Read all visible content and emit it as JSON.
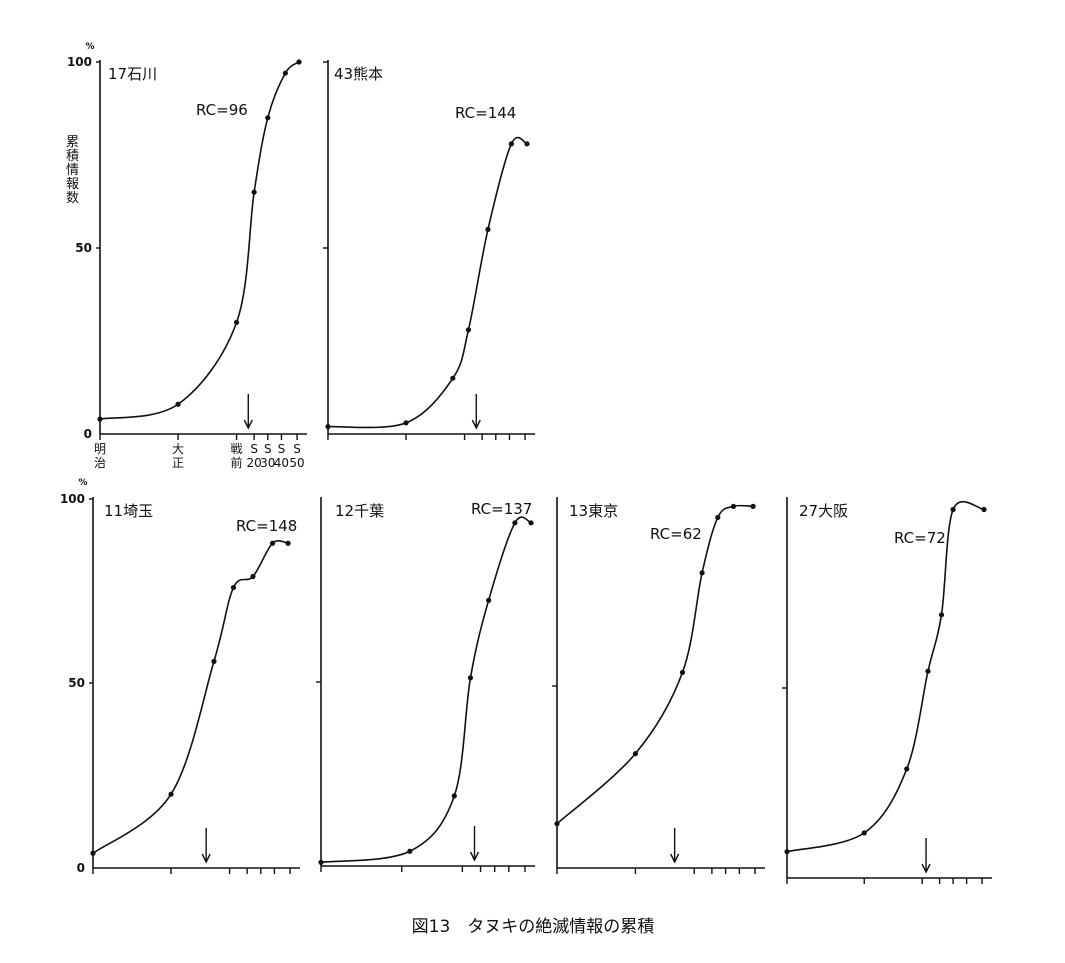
{
  "caption": "図13　タヌキの絶滅情報の累積",
  "chart_data": [
    {
      "type": "line",
      "panel_label": "17石川",
      "rc": "RC=96",
      "ylabel": "累積情報数",
      "y_unit": "%",
      "ylim": [
        0,
        100
      ],
      "yticks": [
        "0",
        "50",
        "100"
      ],
      "xticks": [
        "明治",
        "大正",
        "戦前",
        "S20",
        "S30",
        "S40",
        "S50"
      ],
      "arrow_x": 3.8,
      "x": [
        0,
        2,
        3.5,
        3.95,
        4.3,
        4.75,
        5.1
      ],
      "y": [
        4,
        8,
        30,
        65,
        85,
        97,
        100
      ]
    },
    {
      "type": "line",
      "panel_label": "43熊本",
      "rc": "RC=144",
      "ylim": [
        0,
        100
      ],
      "arrow_x": 3.8,
      "x": [
        0,
        2,
        3.2,
        3.6,
        4.1,
        4.7,
        5.1
      ],
      "y": [
        2,
        3,
        15,
        28,
        55,
        78,
        78
      ]
    },
    {
      "type": "line",
      "panel_label": "11埼玉",
      "rc": "RC=148",
      "y_unit": "%",
      "ylim": [
        0,
        100
      ],
      "yticks": [
        "0",
        "50",
        "100"
      ],
      "arrow_x": 2.9,
      "x": [
        0,
        2,
        3.1,
        3.6,
        4.1,
        4.6,
        5.0
      ],
      "y": [
        4,
        20,
        56,
        76,
        79,
        88,
        88
      ]
    },
    {
      "type": "line",
      "panel_label": "12千葉",
      "rc": "RC=137",
      "ylim": [
        0,
        100
      ],
      "arrow_x": 3.8,
      "x": [
        0,
        2.2,
        3.3,
        3.7,
        4.15,
        4.8,
        5.2
      ],
      "y": [
        1,
        4,
        19,
        51,
        72,
        93,
        93
      ]
    },
    {
      "type": "line",
      "panel_label": "13東京",
      "rc": "RC=62",
      "ylim": [
        0,
        100
      ],
      "arrow_x": 3.0,
      "x": [
        0,
        2.0,
        3.2,
        3.7,
        4.1,
        4.5,
        5.0
      ],
      "y": [
        12,
        31,
        53,
        80,
        95,
        98,
        98
      ]
    },
    {
      "type": "line",
      "panel_label": "27大阪",
      "rc": "RC=72",
      "ylim": [
        0,
        100
      ],
      "arrow_x": 3.6,
      "x": [
        0,
        2.0,
        3.1,
        3.65,
        4.0,
        4.3,
        5.1
      ],
      "y": [
        7,
        12,
        29,
        55,
        70,
        98,
        98
      ]
    }
  ]
}
